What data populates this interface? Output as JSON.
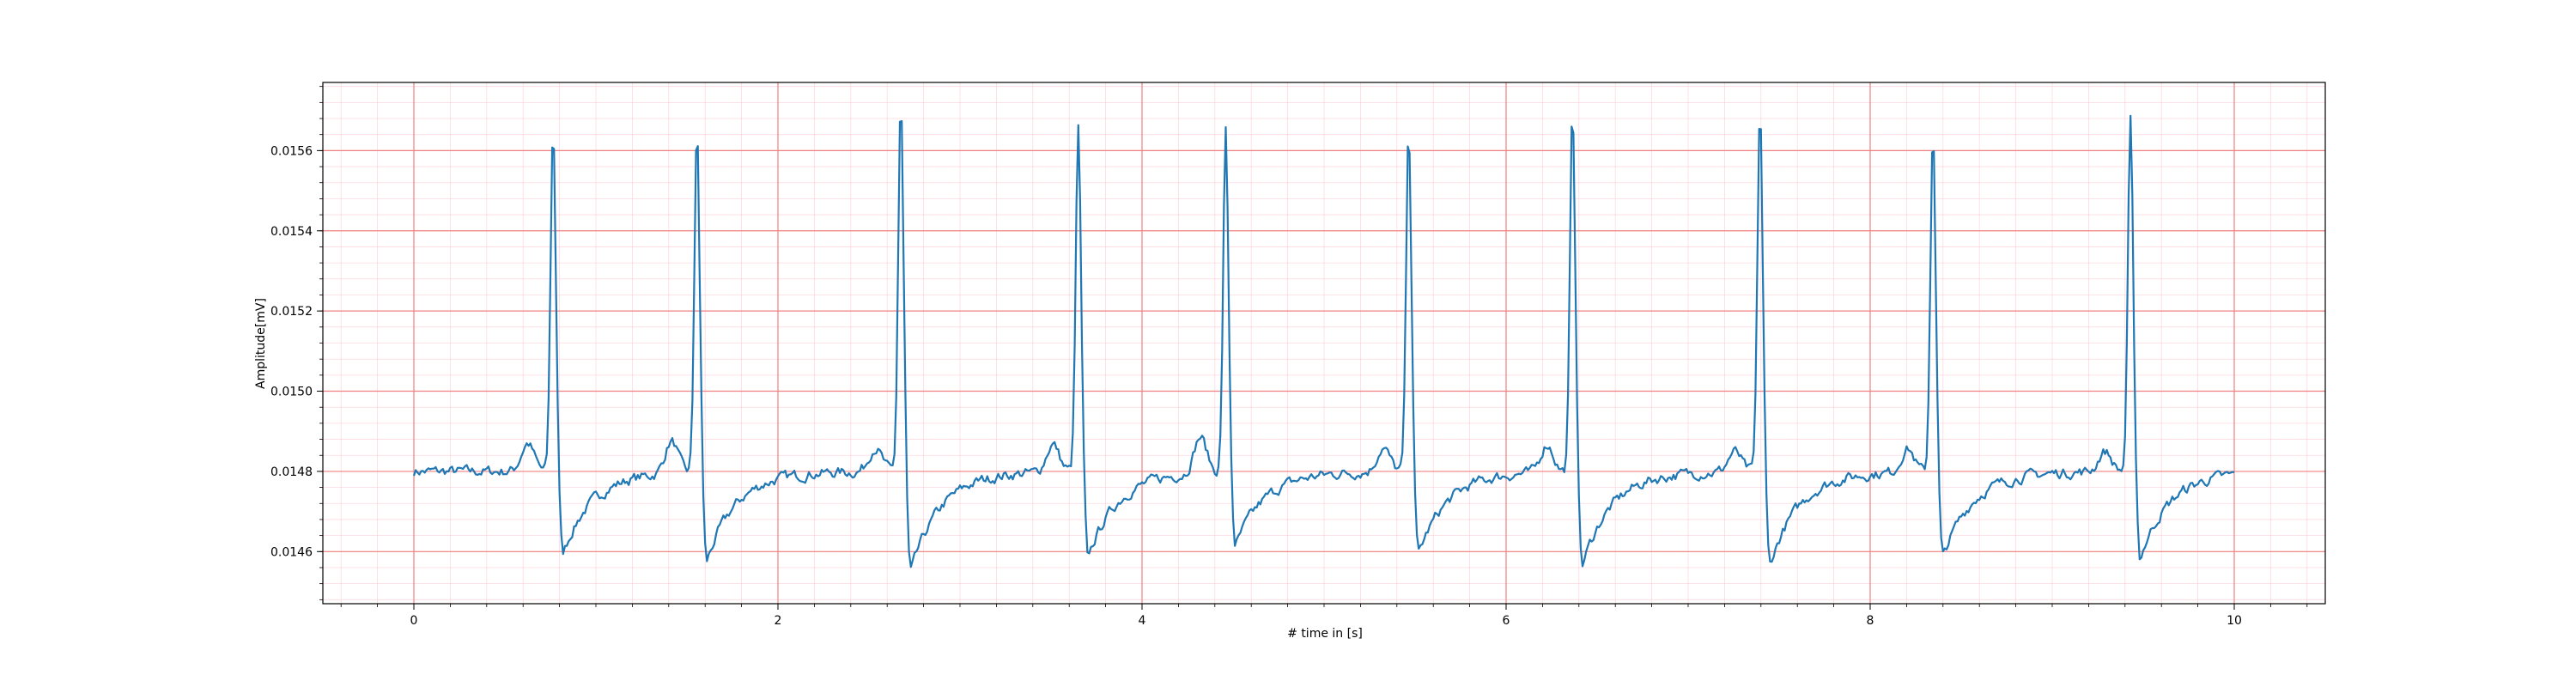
{
  "chart_data": {
    "type": "line",
    "title": "",
    "xlabel": "# time in [s]",
    "ylabel": "Amplitude[mV]",
    "xlim": [
      -0.5,
      10.5
    ],
    "ylim": [
      0.01447,
      0.01577
    ],
    "x_ticks": [
      0,
      2,
      4,
      6,
      8,
      10
    ],
    "x_tick_labels": [
      "0",
      "2",
      "4",
      "6",
      "8",
      "10"
    ],
    "y_ticks": [
      0.0146,
      0.0148,
      0.015,
      0.0152,
      0.0154,
      0.0156
    ],
    "y_tick_labels": [
      "0.0146",
      "0.0148",
      "0.0150",
      "0.0152",
      "0.0154",
      "0.0156"
    ],
    "grid": {
      "major": true,
      "minor": true
    },
    "colors": {
      "line": "#1f77b4",
      "major_grid": "#f08080",
      "minor_grid": "#ffc0cb"
    },
    "baseline": 0.0148,
    "beats": [
      {
        "t": 0.765,
        "peak": 0.01566,
        "trough": 0.01459,
        "p_wave": 0.01487
      },
      {
        "t": 1.555,
        "peak": 0.01566,
        "trough": 0.01457,
        "p_wave": 0.01488
      },
      {
        "t": 2.675,
        "peak": 0.01573,
        "trough": 0.01454,
        "p_wave": 0.01486
      },
      {
        "t": 3.65,
        "peak": 0.01566,
        "trough": 0.01458,
        "p_wave": 0.01487
      },
      {
        "t": 4.46,
        "peak": 0.01565,
        "trough": 0.01461,
        "p_wave": 0.01489
      },
      {
        "t": 5.465,
        "peak": 0.01565,
        "trough": 0.01459,
        "p_wave": 0.01486
      },
      {
        "t": 6.365,
        "peak": 0.0157,
        "trough": 0.01456,
        "p_wave": 0.01487
      },
      {
        "t": 7.395,
        "peak": 0.01571,
        "trough": 0.01456,
        "p_wave": 0.01485
      },
      {
        "t": 8.345,
        "peak": 0.01566,
        "trough": 0.01458,
        "p_wave": 0.01486
      },
      {
        "t": 9.43,
        "peak": 0.01567,
        "trough": 0.01458,
        "p_wave": 0.01485
      }
    ],
    "series": [
      {
        "x_start": 0,
        "x_end": 10,
        "sample_interval": 0.01
      }
    ]
  }
}
